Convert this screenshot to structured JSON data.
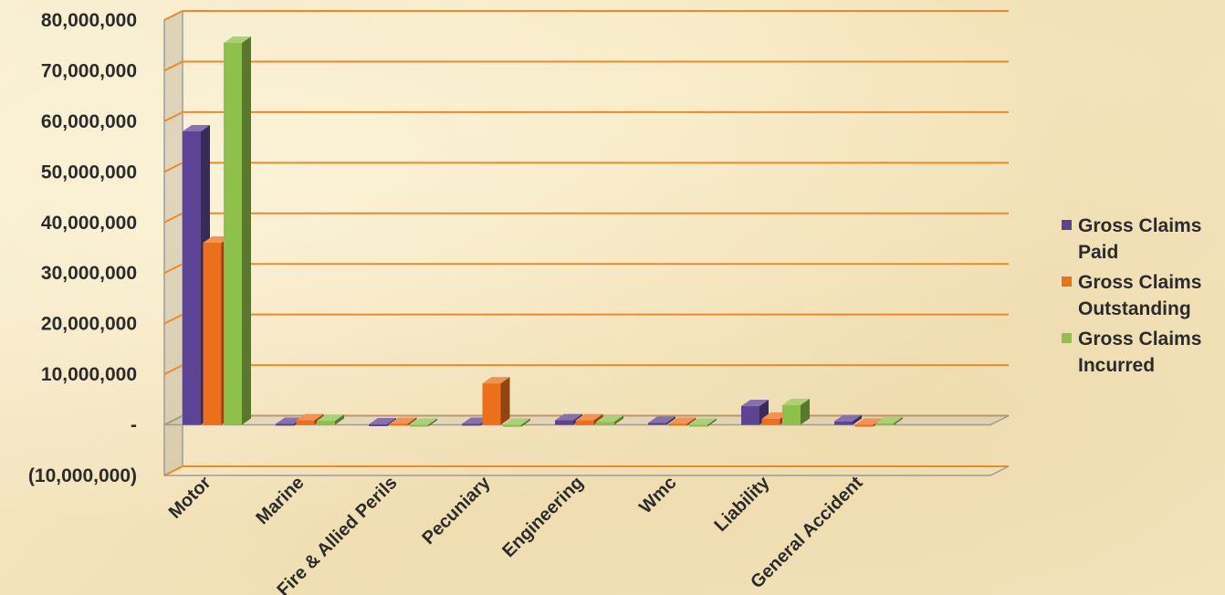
{
  "chart_data": {
    "type": "bar",
    "three_d": true,
    "categories": [
      "Motor",
      "Marine",
      "Fire & Allied Perils",
      "Pecuniary",
      "Engineering",
      "Wmc",
      "Liability",
      "General Accident"
    ],
    "series": [
      {
        "name": "Gross Claims Paid",
        "color": "#5c4394",
        "values": [
          58000000,
          200000,
          100000,
          200000,
          900000,
          400000,
          3700000,
          700000
        ]
      },
      {
        "name": "Gross Claims Outstanding",
        "color": "#ec6f1c",
        "values": [
          36000000,
          900000,
          200000,
          8200000,
          900000,
          200000,
          1200000,
          -300000
        ]
      },
      {
        "name": "Gross Claims Incurred",
        "color": "#8fc04c",
        "values": [
          75500000,
          800000,
          -100000,
          -400000,
          600000,
          -100000,
          3900000,
          300000
        ]
      }
    ],
    "yticks": [
      "80,000,000",
      "70,000,000",
      "60,000,000",
      "50,000,000",
      "40,000,000",
      "30,000,000",
      "20,000,000",
      "10,000,000",
      "-",
      "(10,000,000)"
    ],
    "ylim": [
      -10000000,
      80000000
    ],
    "grid": true,
    "grid_color": "#ec8a2a",
    "legend_position": "right"
  }
}
